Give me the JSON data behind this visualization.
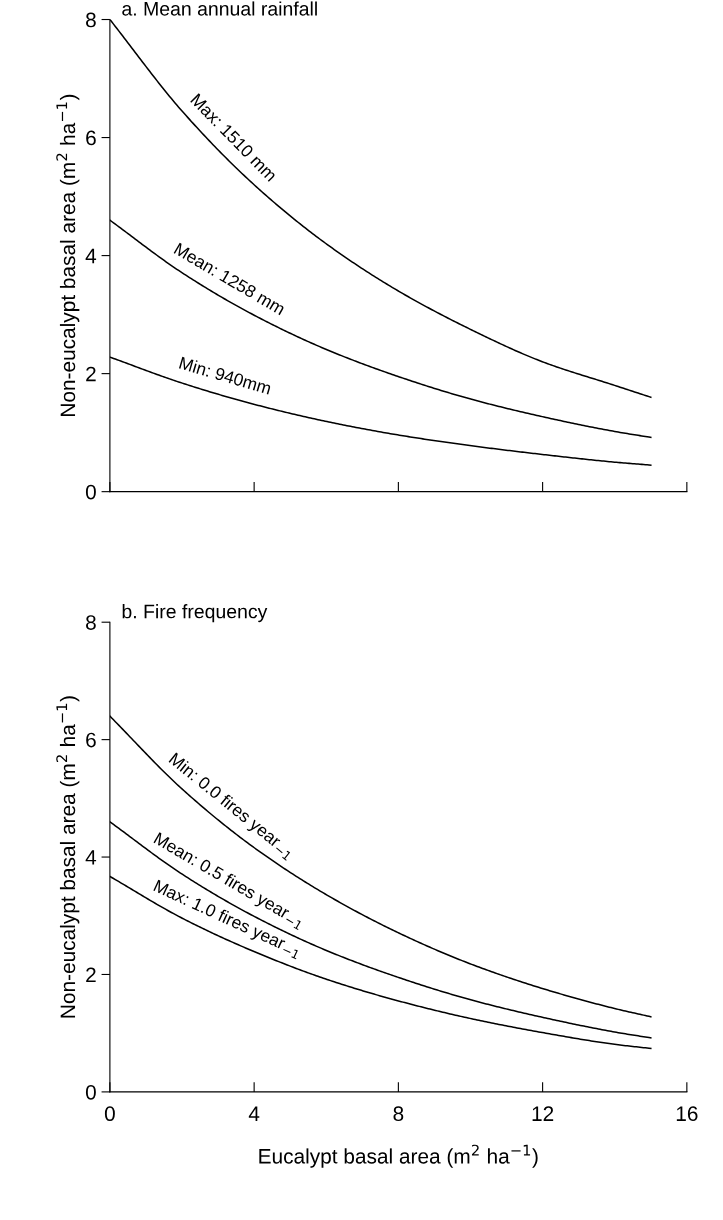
{
  "chart_data": [
    {
      "type": "line",
      "title": "a. Mean annual rainfall",
      "ylabel": "Non-eucalypt basal area (m$^{2}$ ha$^{−1}$)",
      "x": [
        0,
        2,
        4,
        6,
        8,
        10,
        12,
        14,
        15
      ],
      "series": [
        {
          "color": "#000000",
          "values": [
            8.0,
            6.45,
            5.2,
            4.2,
            3.4,
            2.75,
            2.2,
            1.8,
            1.6
          ]
        },
        {
          "color": "#000000",
          "values": [
            4.6,
            3.71,
            2.99,
            2.41,
            1.95,
            1.57,
            1.27,
            1.02,
            0.92
          ]
        },
        {
          "color": "#000000",
          "values": [
            2.28,
            1.84,
            1.48,
            1.19,
            0.96,
            0.78,
            0.63,
            0.5,
            0.45
          ]
        }
      ],
      "annotations": [
        "Max: 1510 mm",
        "Mean: 1258 mm",
        "Min: 940mm"
      ],
      "xlim": [
        0,
        16
      ],
      "xticks": [
        0,
        4,
        8,
        12,
        16
      ],
      "ylim": [
        0,
        8
      ],
      "yticks": [
        0,
        2,
        4,
        6,
        8
      ],
      "tick_labels": "y",
      "grid": false,
      "legend": false
    },
    {
      "type": "line",
      "title": "b. Fire frequency",
      "xlabel": "Eucalypt basal area (m$^{2}$ ha$^{−1}$)",
      "ylabel": "Non-eucalypt basal area (m$^{2}$ ha$^{−1}$)",
      "x": [
        0,
        2,
        4,
        6,
        8,
        10,
        12,
        14,
        15
      ],
      "series": [
        {
          "color": "#000000",
          "values": [
            6.4,
            5.16,
            4.16,
            3.36,
            2.71,
            2.18,
            1.76,
            1.42,
            1.28
          ]
        },
        {
          "color": "#000000",
          "values": [
            4.6,
            3.71,
            2.99,
            2.41,
            1.95,
            1.57,
            1.27,
            1.02,
            0.92
          ]
        },
        {
          "color": "#000000",
          "values": [
            3.67,
            2.96,
            2.39,
            1.92,
            1.55,
            1.25,
            1.01,
            0.81,
            0.74
          ]
        }
      ],
      "annotations": [
        "Min: 0.0 fires year$_{−1}$",
        "Mean: 0.5 fires year$_{−1}$",
        "Max: 1.0 fires year$_{−1}$"
      ],
      "xlim": [
        0,
        16
      ],
      "xticks": [
        0,
        4,
        8,
        12,
        16
      ],
      "ylim": [
        0,
        8
      ],
      "yticks": [
        0,
        2,
        4,
        6,
        8
      ],
      "grid": false,
      "legend": false
    }
  ]
}
